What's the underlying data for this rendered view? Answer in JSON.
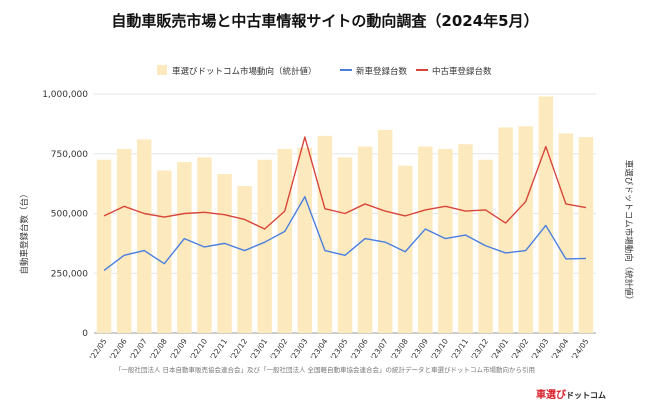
{
  "title": "自動車販売市場と中古車情報サイトの動向調査（2024年5月）",
  "source_note": "「一般社団法人 日本自動車販売協会連合会」及び「一般社団法人 全国軽自動車協会連合会」の統計データと車選びドットコム市場動向から引用",
  "brand": {
    "part1": "車選び",
    "part2": "ドットコム"
  },
  "colors": {
    "bar": "#fce9bd",
    "new": "#4a7fe0",
    "used": "#d8453a",
    "grid": "#e6e6e6"
  },
  "chart_data": {
    "type": "bar+line",
    "categories": [
      "'22/05",
      "'22/06",
      "'22/07",
      "'22/08",
      "'22/09",
      "'22/10",
      "'22/11",
      "'22/12",
      "'23/01",
      "'23/02",
      "'23/03",
      "'23/04",
      "'23/05",
      "'23/06",
      "'23/07",
      "'23/08",
      "'23/09",
      "'23/10",
      "'23/11",
      "'23/12",
      "'24/01",
      "'24/02",
      "'24/03",
      "'24/04",
      "'24/05"
    ],
    "series": [
      {
        "name": "車選びドットコム市場動向（統計値）",
        "kind": "bar",
        "axis": "right",
        "values": [
          725000,
          770000,
          810000,
          680000,
          715000,
          735000,
          665000,
          615000,
          725000,
          770000,
          775000,
          825000,
          735000,
          780000,
          850000,
          700000,
          780000,
          770000,
          790000,
          725000,
          860000,
          865000,
          990000,
          835000,
          820000
        ]
      },
      {
        "name": "新車登録台数",
        "kind": "line",
        "axis": "left",
        "values": [
          262000,
          325000,
          345000,
          290000,
          395000,
          360000,
          375000,
          345000,
          380000,
          425000,
          570000,
          345000,
          325000,
          395000,
          380000,
          340000,
          435000,
          395000,
          410000,
          365000,
          335000,
          345000,
          450000,
          310000,
          312000
        ]
      },
      {
        "name": "中古車登録台数",
        "kind": "line",
        "axis": "left",
        "values": [
          490000,
          530000,
          500000,
          485000,
          500000,
          505000,
          495000,
          475000,
          435000,
          510000,
          820000,
          520000,
          500000,
          540000,
          510000,
          490000,
          515000,
          530000,
          510000,
          515000,
          460000,
          550000,
          780000,
          540000,
          525000
        ]
      }
    ],
    "yticks": [
      "0",
      "250,000",
      "500,000",
      "750,000",
      "1,000,000"
    ],
    "ylim": [
      0,
      1000000
    ],
    "ylabel": "自動車登録台数（台）",
    "y2label": "車選びドットコム市場動向（統計値）",
    "legend": "top"
  }
}
